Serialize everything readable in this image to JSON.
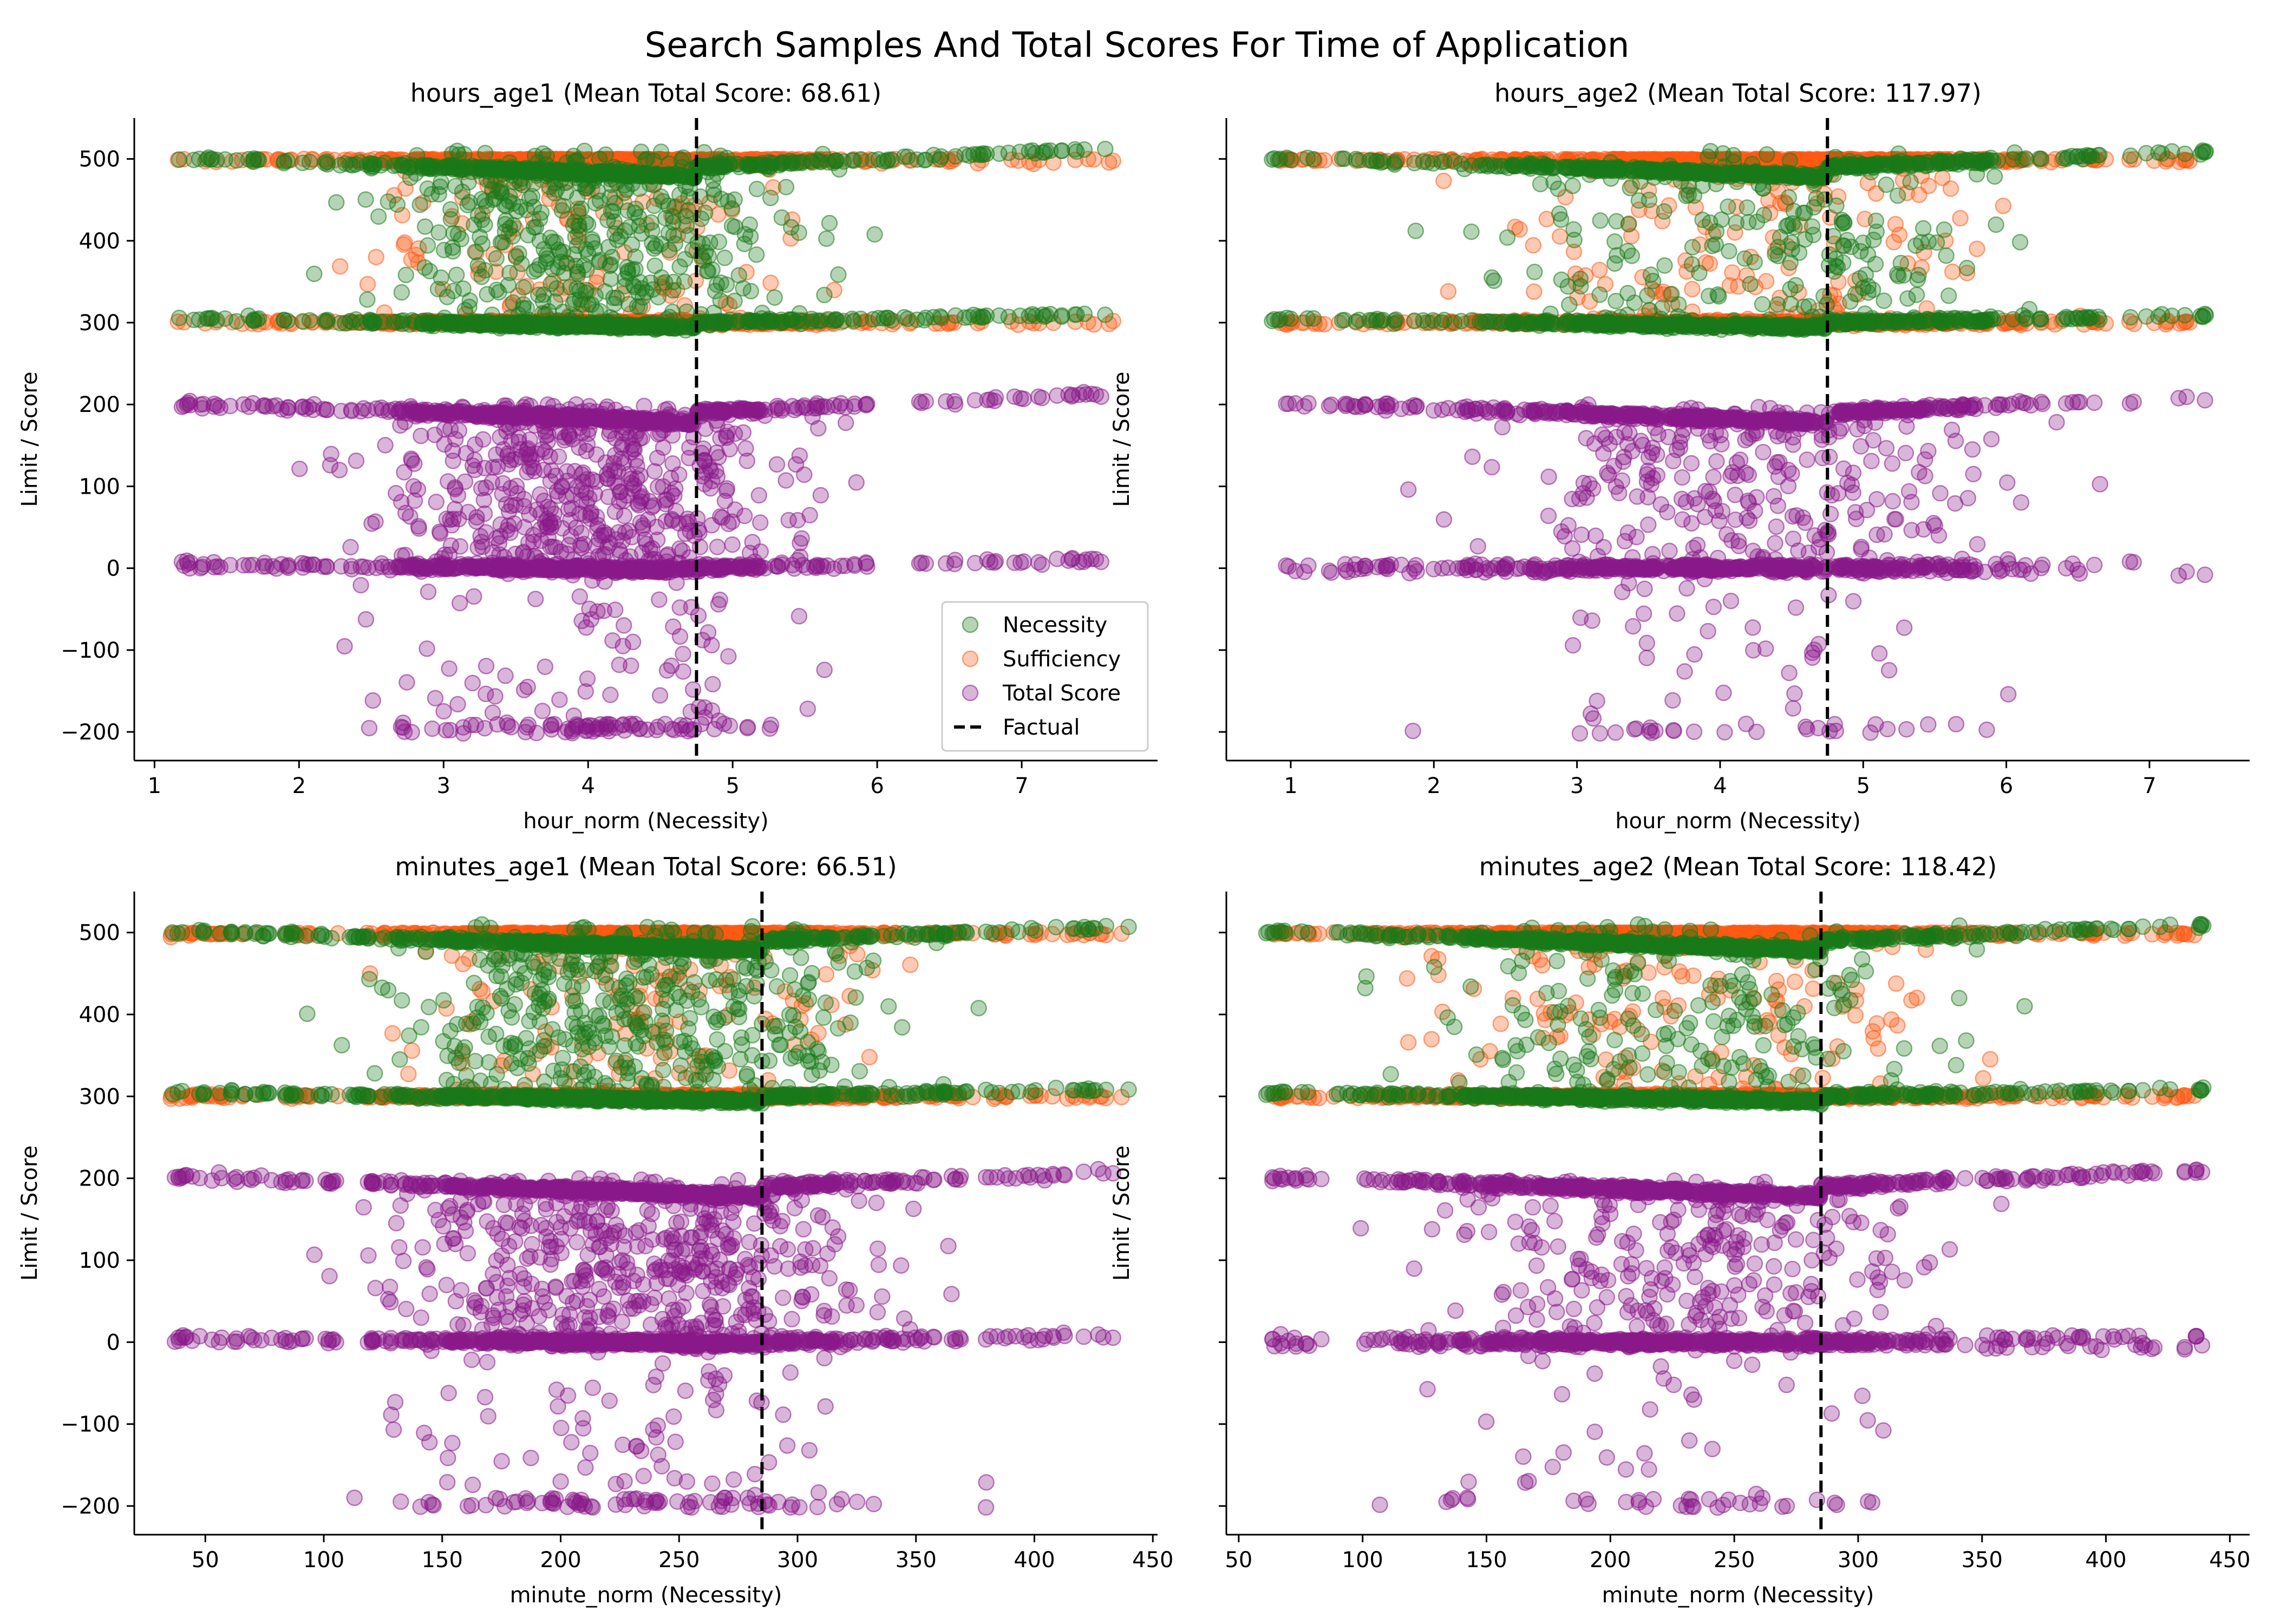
{
  "figure": {
    "suptitle": "Search Samples And Total Scores For Time of Application"
  },
  "colors": {
    "necessity": "#1a7a1a",
    "sufficiency": "#ff5a14",
    "total": "#8a1a8a",
    "factual": "#000000"
  },
  "legend": {
    "placement": "lower-right of first panel",
    "items": [
      {
        "name": "Necessity",
        "color": "#1a7a1a",
        "kind": "marker"
      },
      {
        "name": "Sufficiency",
        "color": "#ff5a14",
        "kind": "marker"
      },
      {
        "name": "Total Score",
        "color": "#8a1a8a",
        "kind": "marker"
      },
      {
        "name": "Factual",
        "color": "#000000",
        "kind": "dashed-line"
      }
    ]
  },
  "chart_data": [
    {
      "type": "scatter",
      "title": "hours_age1 (Mean Total Score: 68.61)",
      "xlabel": "hour_norm (Necessity)",
      "ylabel": "Limit / Score",
      "xlim": [
        0.86,
        7.94
      ],
      "ylim": [
        -235,
        550
      ],
      "xticks": [
        1,
        2,
        3,
        4,
        5,
        6,
        7
      ],
      "yticks": [
        -200,
        -100,
        0,
        100,
        200,
        300,
        400,
        500
      ],
      "factual_x": 4.75,
      "sample_x_range": [
        1.15,
        7.65
      ],
      "dense_x_range": [
        1.9,
        6.1
      ],
      "mean_total_score": 68.61,
      "series": [
        {
          "name": "Necessity",
          "bands": [
            [
              300,
              310
            ],
            [
              500,
              515
            ]
          ],
          "scatter_range": [
            300,
            500
          ]
        },
        {
          "name": "Sufficiency",
          "bands": [
            [
              300,
              300
            ],
            [
              500,
              500
            ]
          ],
          "scatter_range": [
            300,
            500
          ]
        },
        {
          "name": "Total Score",
          "bands": [
            [
              0,
              10
            ],
            [
              200,
              215
            ]
          ],
          "scatter_range": [
            -200,
            200
          ]
        }
      ]
    },
    {
      "type": "scatter",
      "title": "hours_age2 (Mean Total Score: 117.97)",
      "xlabel": "hour_norm (Necessity)",
      "ylabel": "Limit / Score",
      "xlim": [
        0.55,
        7.7
      ],
      "ylim": [
        -235,
        550
      ],
      "xticks": [
        1,
        2,
        3,
        4,
        5,
        6,
        7
      ],
      "yticks": [
        -200,
        -100,
        0,
        100,
        200,
        300,
        400,
        500
      ],
      "factual_x": 4.75,
      "sample_x_range": [
        0.85,
        7.4
      ],
      "dense_x_range": [
        1.6,
        6.8
      ],
      "mean_total_score": 117.97,
      "series": [
        {
          "name": "Necessity",
          "bands": [
            [
              300,
              310
            ],
            [
              500,
              515
            ]
          ],
          "scatter_range": [
            300,
            500
          ]
        },
        {
          "name": "Sufficiency",
          "bands": [
            [
              300,
              300
            ],
            [
              500,
              500
            ]
          ],
          "scatter_range": [
            300,
            500
          ]
        },
        {
          "name": "Total Score",
          "bands": [
            [
              0,
              10
            ],
            [
              200,
              215
            ]
          ],
          "scatter_range": [
            -200,
            200
          ]
        }
      ]
    },
    {
      "type": "scatter",
      "title": "minutes_age1 (Mean Total Score: 66.51)",
      "xlabel": "minute_norm (Necessity)",
      "ylabel": "Limit / Score",
      "xlim": [
        20,
        452
      ],
      "ylim": [
        -235,
        550
      ],
      "xticks": [
        50,
        100,
        150,
        200,
        250,
        300,
        350,
        400,
        450
      ],
      "yticks": [
        -200,
        -100,
        0,
        100,
        200,
        300,
        400,
        500
      ],
      "factual_x": 285,
      "sample_x_range": [
        35,
        440
      ],
      "dense_x_range": [
        80,
        385
      ],
      "mean_total_score": 66.51,
      "series": [
        {
          "name": "Necessity",
          "bands": [
            [
              300,
              310
            ],
            [
              500,
              515
            ]
          ],
          "scatter_range": [
            300,
            500
          ]
        },
        {
          "name": "Sufficiency",
          "bands": [
            [
              300,
              300
            ],
            [
              500,
              500
            ]
          ],
          "scatter_range": [
            300,
            500
          ]
        },
        {
          "name": "Total Score",
          "bands": [
            [
              0,
              10
            ],
            [
              200,
              215
            ]
          ],
          "scatter_range": [
            -200,
            200
          ]
        }
      ]
    },
    {
      "type": "scatter",
      "title": "minutes_age2 (Mean Total Score: 118.42)",
      "xlabel": "minute_norm (Necessity)",
      "ylabel": "Limit / Score",
      "xlim": [
        45,
        458
      ],
      "ylim": [
        -235,
        550
      ],
      "xticks": [
        50,
        100,
        150,
        200,
        250,
        300,
        350,
        400,
        450
      ],
      "yticks": [
        -200,
        -100,
        0,
        100,
        200,
        300,
        400,
        500
      ],
      "factual_x": 285,
      "sample_x_range": [
        60,
        440
      ],
      "dense_x_range": [
        78,
        385
      ],
      "mean_total_score": 118.42,
      "series": [
        {
          "name": "Necessity",
          "bands": [
            [
              300,
              310
            ],
            [
              500,
              515
            ]
          ],
          "scatter_range": [
            300,
            500
          ]
        },
        {
          "name": "Sufficiency",
          "bands": [
            [
              300,
              300
            ],
            [
              500,
              500
            ]
          ],
          "scatter_range": [
            300,
            500
          ]
        },
        {
          "name": "Total Score",
          "bands": [
            [
              0,
              10
            ],
            [
              200,
              215
            ]
          ],
          "scatter_range": [
            -200,
            200
          ]
        }
      ]
    }
  ]
}
